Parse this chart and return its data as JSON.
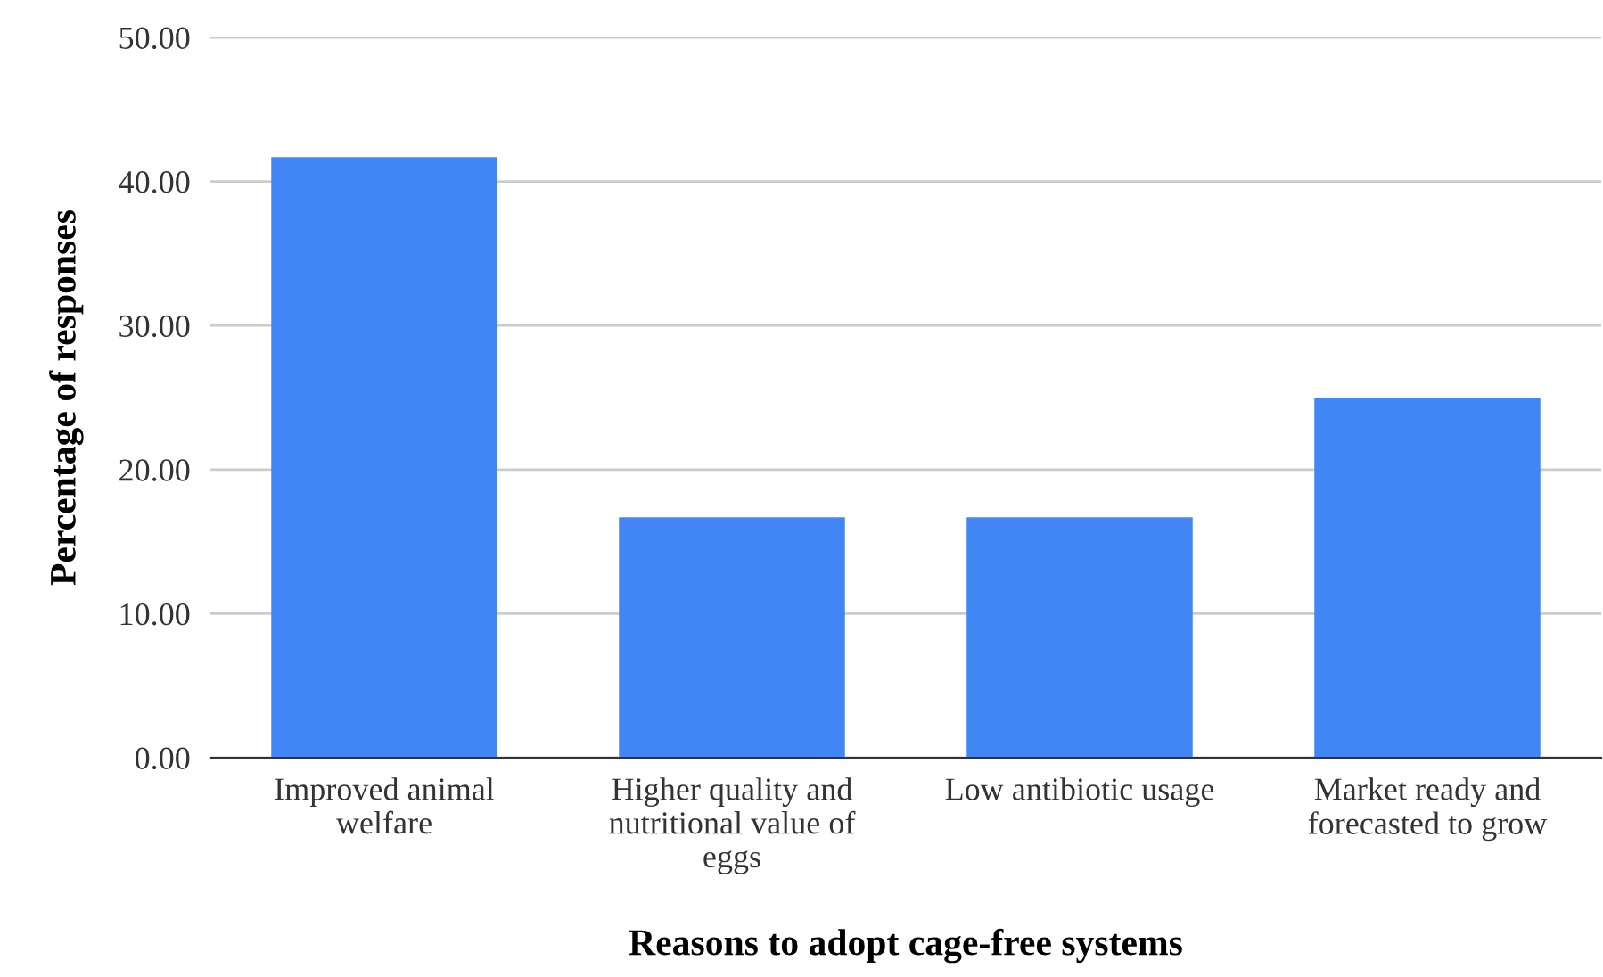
{
  "chart_data": {
    "type": "bar",
    "xlabel": "Reasons to adopt cage-free systems",
    "ylabel": "Percentage of responses",
    "categories": [
      "Improved animal\nwelfare",
      "Higher quality and\nnutritional value of\neggs",
      "Low antibiotic usage",
      "Market ready and\nforecasted to grow"
    ],
    "values": [
      41.7,
      16.7,
      16.7,
      25.0
    ],
    "color": "#4285f4",
    "ylim": [
      0,
      50
    ],
    "yticks": [
      {
        "value": 0,
        "label": "0.00"
      },
      {
        "value": 10,
        "label": "10.00"
      },
      {
        "value": 20,
        "label": "20.00"
      },
      {
        "value": 30,
        "label": "30.00"
      },
      {
        "value": 40,
        "label": "40.00"
      },
      {
        "value": 50,
        "label": "50.00"
      }
    ],
    "grid": "y",
    "legend": false
  }
}
